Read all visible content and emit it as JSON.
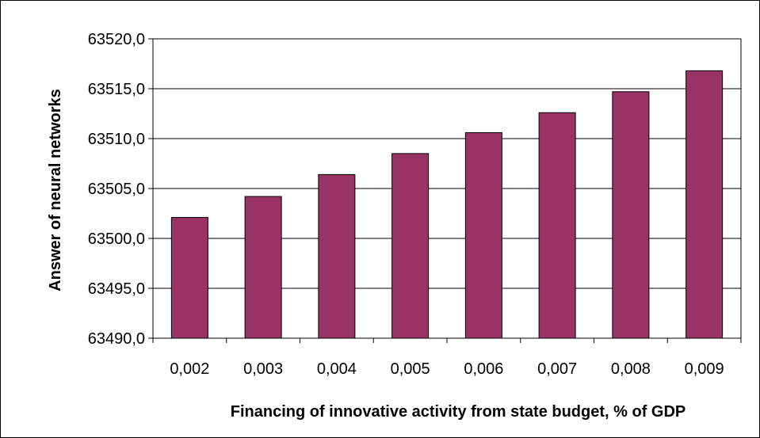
{
  "chart_data": {
    "type": "bar",
    "title": "",
    "xlabel": "Financing of innovative activity from state budget, % of GDP",
    "ylabel": "Answer of neural networks",
    "categories": [
      "0,002",
      "0,003",
      "0,004",
      "0,005",
      "0,006",
      "0,007",
      "0,008",
      "0,009"
    ],
    "values": [
      63502.1,
      63504.2,
      63506.4,
      63508.5,
      63510.6,
      63512.6,
      63514.7,
      63516.8
    ],
    "ylim": [
      63490,
      63520
    ],
    "yticks": [
      63490,
      63495,
      63500,
      63505,
      63510,
      63515,
      63520
    ],
    "ytick_labels": [
      "63490,0",
      "63495,0",
      "63500,0",
      "63505,0",
      "63510,0",
      "63515,0",
      "63520,0"
    ],
    "bar_color": "#993366",
    "grid": true,
    "legend": false
  }
}
